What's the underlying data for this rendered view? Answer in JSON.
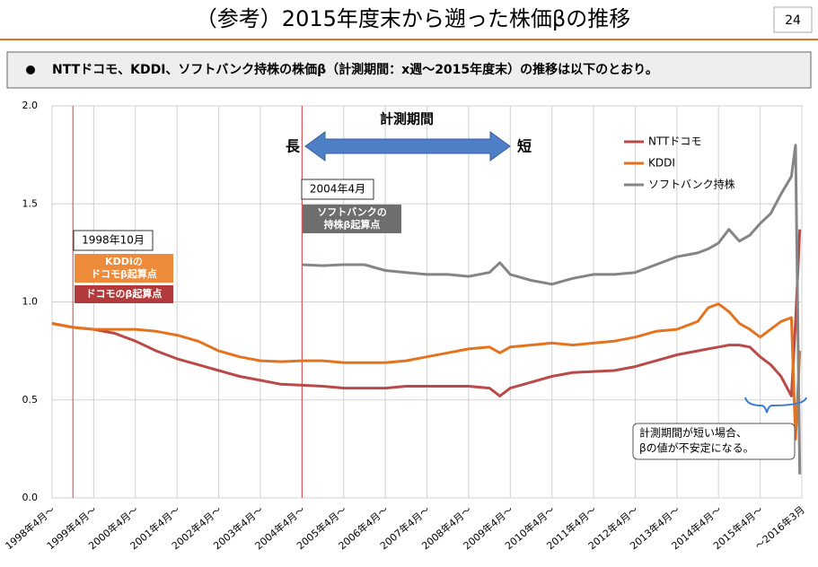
{
  "header": {
    "title": "（参考）2015年度末から遡った株価βの推移",
    "page": "24"
  },
  "bullet": "NTTドコモ、KDDI、ソフトバンク持株の株価β（計測期間：x週～2015年度末）の推移は以下のとおり。",
  "chart_data": {
    "type": "line",
    "x": [
      1998.25,
      1998.75,
      1999.25,
      1999.75,
      2000.25,
      2000.75,
      2001.25,
      2001.75,
      2002.25,
      2002.75,
      2003.25,
      2003.75,
      2004.25,
      2004.75,
      2005.25,
      2005.75,
      2006.25,
      2006.75,
      2007.25,
      2007.75,
      2008.25,
      2008.75,
      2009.0,
      2009.25,
      2009.75,
      2010.25,
      2010.75,
      2011.25,
      2011.75,
      2012.25,
      2012.75,
      2013.25,
      2013.75,
      2014.0,
      2014.25,
      2014.5,
      2014.75,
      2015.0,
      2015.25,
      2015.5,
      2015.75,
      2016.0,
      2016.1,
      2016.2
    ],
    "series": [
      {
        "name": "NTTドコモ",
        "color": "#b94a48",
        "values": [
          0.89,
          0.87,
          0.86,
          0.84,
          0.8,
          0.75,
          0.71,
          0.68,
          0.65,
          0.62,
          0.6,
          0.58,
          0.575,
          0.57,
          0.56,
          0.56,
          0.56,
          0.57,
          0.57,
          0.57,
          0.57,
          0.56,
          0.52,
          0.56,
          0.59,
          0.62,
          0.64,
          0.645,
          0.65,
          0.67,
          0.7,
          0.73,
          0.75,
          0.76,
          0.77,
          0.78,
          0.78,
          0.77,
          0.72,
          0.68,
          0.62,
          0.52,
          0.9,
          1.37
        ]
      },
      {
        "name": "KDDI",
        "color": "#e3731f",
        "values": [
          0.89,
          0.87,
          0.86,
          0.86,
          0.86,
          0.85,
          0.83,
          0.8,
          0.75,
          0.72,
          0.7,
          0.695,
          0.7,
          0.7,
          0.69,
          0.69,
          0.69,
          0.7,
          0.72,
          0.74,
          0.76,
          0.77,
          0.74,
          0.77,
          0.78,
          0.79,
          0.78,
          0.79,
          0.8,
          0.82,
          0.85,
          0.86,
          0.9,
          0.97,
          0.99,
          0.95,
          0.89,
          0.86,
          0.82,
          0.86,
          0.9,
          0.92,
          0.3,
          0.75
        ]
      },
      {
        "name": "ソフトバンク持株",
        "color": "#858585",
        "values": [
          null,
          null,
          null,
          null,
          null,
          null,
          null,
          null,
          null,
          null,
          null,
          null,
          1.19,
          1.185,
          1.19,
          1.19,
          1.16,
          1.15,
          1.14,
          1.14,
          1.13,
          1.15,
          1.2,
          1.14,
          1.11,
          1.09,
          1.12,
          1.14,
          1.14,
          1.15,
          1.19,
          1.23,
          1.25,
          1.27,
          1.3,
          1.37,
          1.31,
          1.34,
          1.4,
          1.45,
          1.55,
          1.64,
          1.8,
          0.12
        ]
      }
    ],
    "xlim": [
      1998.25,
      2016.25
    ],
    "xticks": [
      {
        "value": 1998.25,
        "label": "1998年4月～"
      },
      {
        "value": 1999.25,
        "label": "1999年4月～"
      },
      {
        "value": 2000.25,
        "label": "2000年4月～"
      },
      {
        "value": 2001.25,
        "label": "2001年4月～"
      },
      {
        "value": 2002.25,
        "label": "2002年4月～"
      },
      {
        "value": 2003.25,
        "label": "2003年4月～"
      },
      {
        "value": 2004.25,
        "label": "2004年4月～"
      },
      {
        "value": 2005.25,
        "label": "2005年4月～"
      },
      {
        "value": 2006.25,
        "label": "2006年4月～"
      },
      {
        "value": 2007.25,
        "label": "2007年4月～"
      },
      {
        "value": 2008.25,
        "label": "2008年4月～"
      },
      {
        "value": 2009.25,
        "label": "2009年4月～"
      },
      {
        "value": 2010.25,
        "label": "2010年4月～"
      },
      {
        "value": 2011.25,
        "label": "2011年4月～"
      },
      {
        "value": 2012.25,
        "label": "2012年4月～"
      },
      {
        "value": 2013.25,
        "label": "2013年4月～"
      },
      {
        "value": 2014.25,
        "label": "2014年4月～"
      },
      {
        "value": 2015.25,
        "label": "2015年4月～"
      },
      {
        "value": 2016.25,
        "label": "～2016年3月"
      }
    ],
    "ylim": [
      0,
      2
    ],
    "yticks": [
      {
        "value": 0,
        "label": "0.0"
      },
      {
        "value": 0.5,
        "label": "0.5"
      },
      {
        "value": 1,
        "label": "1.0"
      },
      {
        "value": 1.5,
        "label": "1.5"
      },
      {
        "value": 2,
        "label": "2.0"
      }
    ],
    "grid": true,
    "legend": "upper right",
    "annotations": {
      "period": "計測期間",
      "long": "長",
      "short": "短",
      "start_sb": {
        "x": 2004.25,
        "date": "2004年4月",
        "note": [
          "ソフトバンクの",
          "持株β起算点"
        ]
      },
      "start_kd": {
        "x": 1998.75,
        "date": "1998年10月",
        "note_kddi": [
          "KDDIの",
          "ドコモβ起算点"
        ],
        "note_docomo": "ドコモのβ起算点"
      },
      "unstable": [
        "計測期間が短い場合、",
        "βの値が不安定になる。"
      ]
    }
  }
}
